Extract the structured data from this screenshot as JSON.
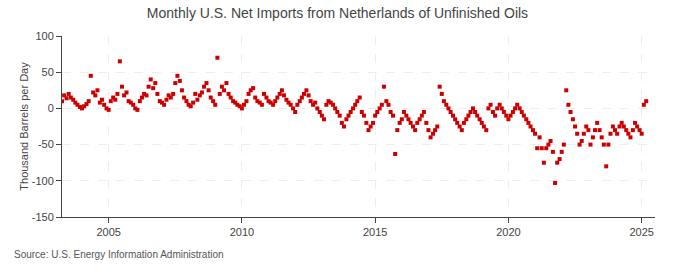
{
  "chart_data": {
    "type": "scatter",
    "title": "Monthly U.S. Net Imports from Netherlands of Unfinished Oils",
    "y_label": "Thousand Barrels per Day",
    "annotations": [
      "Source: U.S. Energy Information Administration"
    ],
    "color": "#cc0000",
    "marker": "square",
    "grid": true,
    "xlim": [
      2003.25,
      2025.5
    ],
    "xticks": [
      2005,
      2010,
      2015,
      2020,
      2025
    ],
    "ylim": [
      -150,
      100
    ],
    "yticks": [
      -150,
      -100,
      -50,
      0,
      50,
      100
    ],
    "x": [
      2003.25,
      2003.33,
      2003.42,
      2003.5,
      2003.58,
      2003.67,
      2003.75,
      2003.83,
      2003.92,
      2004.0,
      2004.08,
      2004.17,
      2004.25,
      2004.33,
      2004.42,
      2004.5,
      2004.58,
      2004.67,
      2004.75,
      2004.83,
      2004.92,
      2005.0,
      2005.08,
      2005.17,
      2005.25,
      2005.33,
      2005.42,
      2005.5,
      2005.58,
      2005.67,
      2005.75,
      2005.83,
      2005.92,
      2006.0,
      2006.08,
      2006.17,
      2006.25,
      2006.33,
      2006.42,
      2006.5,
      2006.58,
      2006.67,
      2006.75,
      2006.83,
      2006.92,
      2007.0,
      2007.08,
      2007.17,
      2007.25,
      2007.33,
      2007.42,
      2007.5,
      2007.58,
      2007.67,
      2007.75,
      2007.83,
      2007.92,
      2008.0,
      2008.08,
      2008.17,
      2008.25,
      2008.33,
      2008.42,
      2008.5,
      2008.58,
      2008.67,
      2008.75,
      2008.83,
      2008.92,
      2009.0,
      2009.08,
      2009.17,
      2009.25,
      2009.33,
      2009.42,
      2009.5,
      2009.58,
      2009.67,
      2009.75,
      2009.83,
      2009.92,
      2010.0,
      2010.08,
      2010.17,
      2010.25,
      2010.33,
      2010.42,
      2010.5,
      2010.58,
      2010.67,
      2010.75,
      2010.83,
      2010.92,
      2011.0,
      2011.08,
      2011.17,
      2011.25,
      2011.33,
      2011.42,
      2011.5,
      2011.58,
      2011.67,
      2011.75,
      2011.83,
      2011.92,
      2012.0,
      2012.08,
      2012.17,
      2012.25,
      2012.33,
      2012.42,
      2012.5,
      2012.58,
      2012.67,
      2012.75,
      2012.83,
      2012.92,
      2013.0,
      2013.08,
      2013.17,
      2013.25,
      2013.33,
      2013.42,
      2013.5,
      2013.58,
      2013.67,
      2013.75,
      2013.83,
      2013.92,
      2014.0,
      2014.08,
      2014.17,
      2014.25,
      2014.33,
      2014.42,
      2014.5,
      2014.58,
      2014.67,
      2014.75,
      2014.83,
      2014.92,
      2015.0,
      2015.08,
      2015.17,
      2015.25,
      2015.33,
      2015.42,
      2015.5,
      2015.58,
      2015.67,
      2015.75,
      2015.83,
      2015.92,
      2016.0,
      2016.08,
      2016.17,
      2016.25,
      2016.33,
      2016.42,
      2016.5,
      2016.58,
      2016.67,
      2016.75,
      2016.83,
      2016.92,
      2017.0,
      2017.08,
      2017.17,
      2017.25,
      2017.33,
      2017.42,
      2017.5,
      2017.58,
      2017.67,
      2017.75,
      2017.83,
      2017.92,
      2018.0,
      2018.08,
      2018.17,
      2018.25,
      2018.33,
      2018.42,
      2018.5,
      2018.58,
      2018.67,
      2018.75,
      2018.83,
      2018.92,
      2019.0,
      2019.08,
      2019.17,
      2019.25,
      2019.33,
      2019.42,
      2019.5,
      2019.58,
      2019.67,
      2019.75,
      2019.83,
      2019.92,
      2020.0,
      2020.08,
      2020.17,
      2020.25,
      2020.33,
      2020.42,
      2020.5,
      2020.58,
      2020.67,
      2020.75,
      2020.83,
      2020.92,
      2021.0,
      2021.08,
      2021.17,
      2021.25,
      2021.33,
      2021.42,
      2021.5,
      2021.58,
      2021.67,
      2021.75,
      2021.83,
      2021.92,
      2022.0,
      2022.08,
      2022.17,
      2022.25,
      2022.33,
      2022.42,
      2022.5,
      2022.58,
      2022.67,
      2022.75,
      2022.83,
      2022.92,
      2023.0,
      2023.08,
      2023.17,
      2023.25,
      2023.33,
      2023.42,
      2023.5,
      2023.58,
      2023.67,
      2023.75,
      2023.83,
      2023.92,
      2024.0,
      2024.08,
      2024.17,
      2024.25,
      2024.33,
      2024.42,
      2024.5,
      2024.58,
      2024.67,
      2024.75,
      2024.83,
      2024.92,
      2025.0,
      2025.08,
      2025.17
    ],
    "values": [
      10,
      18,
      14,
      20,
      15,
      12,
      8,
      5,
      2,
      0,
      3,
      6,
      10,
      45,
      22,
      18,
      25,
      8,
      12,
      5,
      0,
      -2,
      10,
      15,
      12,
      20,
      65,
      30,
      18,
      22,
      10,
      8,
      5,
      0,
      -2,
      10,
      15,
      20,
      18,
      30,
      40,
      28,
      35,
      20,
      10,
      8,
      5,
      12,
      18,
      15,
      20,
      35,
      45,
      38,
      25,
      15,
      10,
      5,
      3,
      8,
      20,
      12,
      18,
      22,
      30,
      35,
      25,
      15,
      10,
      5,
      70,
      20,
      30,
      25,
      35,
      20,
      15,
      10,
      8,
      5,
      3,
      0,
      5,
      10,
      20,
      25,
      28,
      15,
      10,
      8,
      5,
      20,
      15,
      10,
      8,
      5,
      10,
      15,
      20,
      25,
      18,
      12,
      8,
      5,
      0,
      -5,
      5,
      10,
      15,
      20,
      25,
      18,
      10,
      5,
      8,
      0,
      -5,
      -10,
      -15,
      5,
      10,
      8,
      5,
      0,
      -5,
      -10,
      -20,
      -25,
      -15,
      -10,
      -5,
      0,
      5,
      10,
      15,
      -5,
      -10,
      -20,
      -30,
      -25,
      -20,
      -10,
      -5,
      0,
      5,
      30,
      10,
      5,
      -5,
      -10,
      -63,
      -30,
      -20,
      -15,
      -5,
      -10,
      -15,
      -20,
      -25,
      -30,
      -20,
      -15,
      -10,
      -5,
      -20,
      -30,
      -40,
      -35,
      -30,
      -25,
      30,
      20,
      10,
      5,
      0,
      -5,
      -10,
      -15,
      -20,
      -25,
      -30,
      -20,
      -15,
      -10,
      -5,
      0,
      -5,
      -10,
      -15,
      -20,
      -25,
      -30,
      0,
      5,
      -5,
      -10,
      0,
      5,
      0,
      -5,
      -10,
      -15,
      -10,
      -5,
      0,
      5,
      0,
      -5,
      -10,
      -15,
      -20,
      -25,
      -30,
      -35,
      -55,
      -40,
      -55,
      -75,
      -55,
      -50,
      -45,
      -60,
      -103,
      -75,
      -70,
      -60,
      -50,
      25,
      5,
      -5,
      -15,
      -25,
      -35,
      -50,
      -45,
      -35,
      -25,
      -30,
      -50,
      -40,
      -30,
      -20,
      -30,
      -40,
      -50,
      -80,
      -50,
      -35,
      -25,
      -30,
      -35,
      -25,
      -20,
      -25,
      -30,
      -35,
      -40,
      -30,
      -20,
      -25,
      -30,
      -35,
      5,
      10
    ]
  }
}
